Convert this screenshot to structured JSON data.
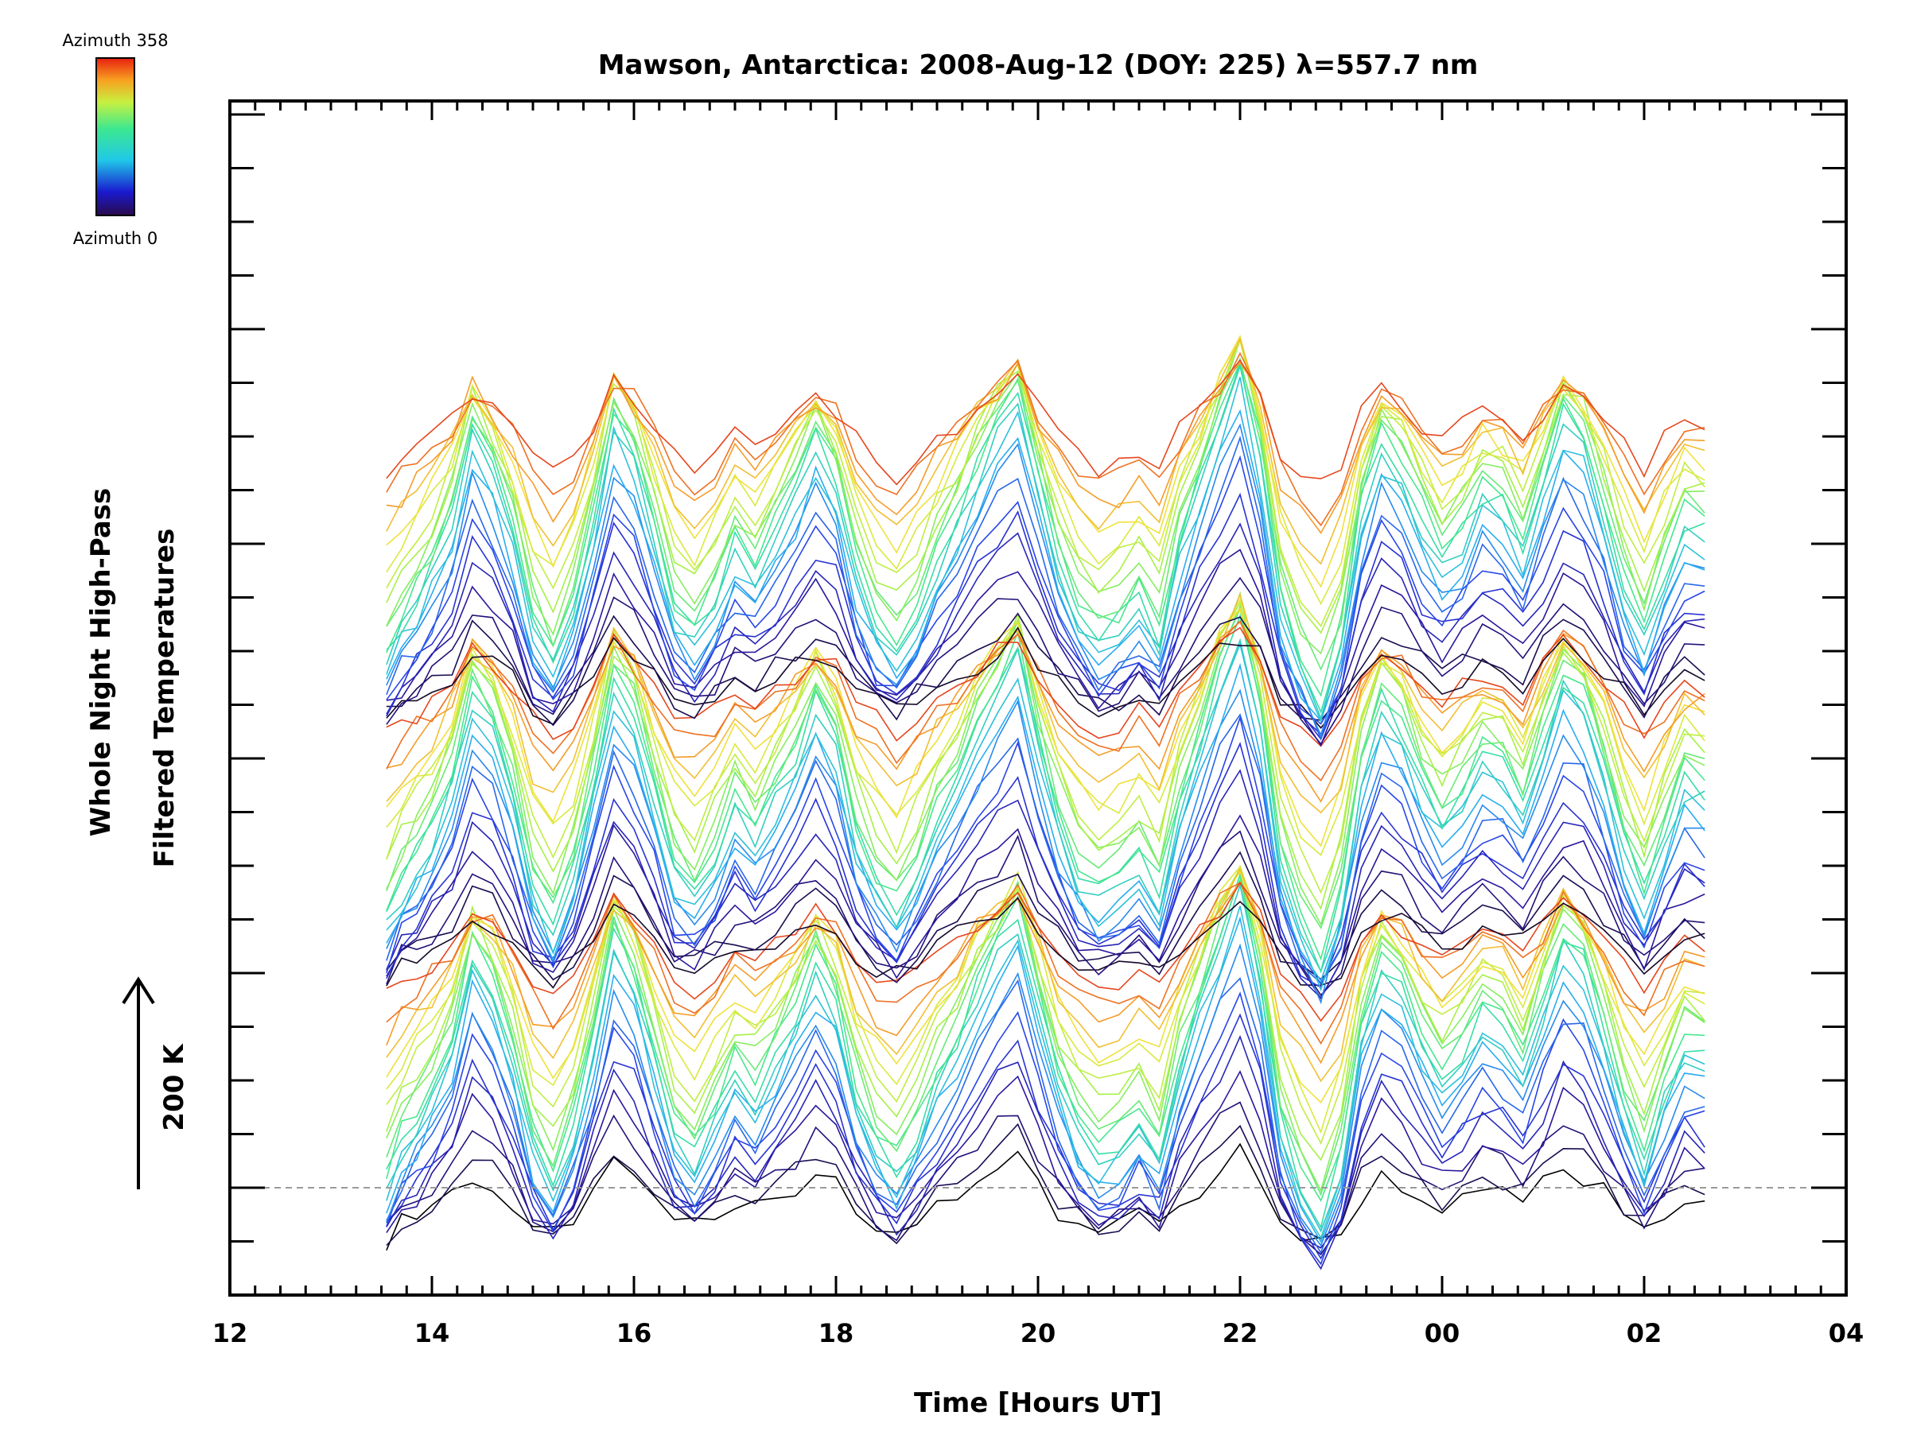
{
  "chart_data": {
    "type": "line",
    "title": "Mawson, Antarctica: 2008-Aug-12 (DOY: 225) λ=557.7 nm",
    "xlabel": "Time [Hours UT]",
    "ylabel_line1": "Whole Night High-Pass",
    "ylabel_line2": "Filtered Temperatures",
    "scale_label": "200 K",
    "colorbar": {
      "top_label": "Azimuth 358",
      "bottom_label": "Azimuth 0",
      "colormap": "rainbow"
    },
    "x_tick_labels": [
      "12",
      "14",
      "16",
      "18",
      "20",
      "22",
      "00",
      "02",
      "04"
    ],
    "x_ticks_hours": [
      12,
      14,
      16,
      18,
      20,
      22,
      24,
      26,
      28
    ],
    "xlim_hours": [
      12,
      28
    ],
    "x_sample_times_hours": [
      13.55,
      13.7,
      13.85,
      14.0,
      14.2,
      14.4,
      14.6,
      14.8,
      15.0,
      15.2,
      15.4,
      15.6,
      15.8,
      16.0,
      16.2,
      16.4,
      16.6,
      16.8,
      17.0,
      17.2,
      17.4,
      17.6,
      17.8,
      18.0,
      18.2,
      18.4,
      18.6,
      18.8,
      19.0,
      19.2,
      19.4,
      19.6,
      19.8,
      20.0,
      20.2,
      20.4,
      20.6,
      20.8,
      21.0,
      21.2,
      21.4,
      21.6,
      21.8,
      22.0,
      22.2,
      22.4,
      22.6,
      22.8,
      23.0,
      23.2,
      23.4,
      23.6,
      23.8,
      24.0,
      24.2,
      24.4,
      24.6,
      24.8,
      25.0,
      25.2,
      25.4,
      25.6,
      25.8,
      26.0,
      26.2,
      26.4,
      26.6
    ],
    "zero_line": "dashed gray",
    "series_count": 72,
    "vertical_offset_per_series_K": 75,
    "base_waveform_K": [
      -80,
      -50,
      -30,
      -10,
      30,
      100,
      70,
      20,
      -50,
      -80,
      -40,
      30,
      110,
      80,
      20,
      -40,
      -60,
      -30,
      10,
      -10,
      20,
      50,
      90,
      60,
      -10,
      -50,
      -70,
      -40,
      0,
      30,
      70,
      100,
      130,
      60,
      0,
      -40,
      -60,
      -50,
      -30,
      -60,
      10,
      60,
      110,
      150,
      80,
      -30,
      -80,
      -110,
      -60,
      40,
      90,
      70,
      30,
      0,
      20,
      50,
      40,
      10,
      60,
      110,
      90,
      40,
      -20,
      -60,
      -10,
      30,
      20
    ]
  }
}
